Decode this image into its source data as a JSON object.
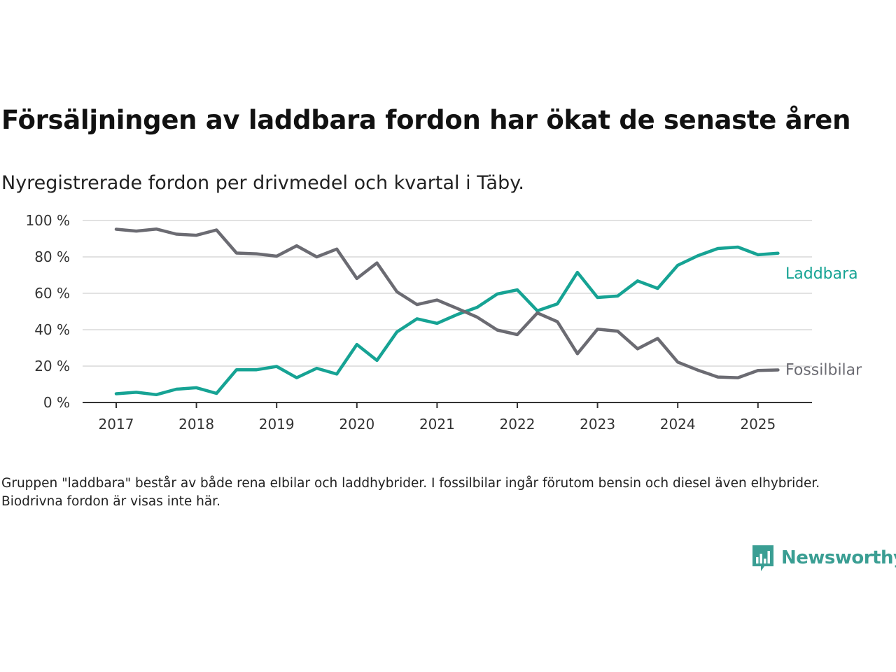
{
  "title": "Försäljningen av laddbara fordon har ökat de senaste åren",
  "subtitle": "Nyregistrerade fordon per drivmedel och kvartal i Täby.",
  "note": "Gruppen \"laddbara\" består av både rena elbilar och laddhybrider. I fossilbilar ingår förutom bensin och diesel även elhybrider. Biodrivna fordon är visas inte här.",
  "logo": {
    "text": "Newsworthy",
    "icon": "newsworthy-bar-chart-icon",
    "color": "#3a9e93"
  },
  "chart_data": {
    "type": "line",
    "x": [
      "2017-Q1",
      "2017-Q2",
      "2017-Q3",
      "2017-Q4",
      "2018-Q1",
      "2018-Q2",
      "2018-Q3",
      "2018-Q4",
      "2019-Q1",
      "2019-Q2",
      "2019-Q3",
      "2019-Q4",
      "2020-Q1",
      "2020-Q2",
      "2020-Q3",
      "2020-Q4",
      "2021-Q1",
      "2021-Q2",
      "2021-Q3",
      "2021-Q4",
      "2022-Q1",
      "2022-Q2",
      "2022-Q3",
      "2022-Q4",
      "2023-Q1",
      "2023-Q2",
      "2023-Q3",
      "2023-Q4",
      "2024-Q1",
      "2024-Q2",
      "2024-Q3",
      "2024-Q4",
      "2025-Q1",
      "2025-Q2"
    ],
    "x_tick_labels": [
      "2017",
      "2018",
      "2019",
      "2020",
      "2021",
      "2022",
      "2023",
      "2024",
      "2025"
    ],
    "y_tick_labels": [
      "0 %",
      "20 %",
      "40 %",
      "60 %",
      "80 %",
      "100 %"
    ],
    "ylim": [
      0,
      100
    ],
    "grid": true,
    "series": [
      {
        "name": "Laddbara",
        "color": "#16a394",
        "values": [
          4.8,
          5.6,
          4.3,
          7.3,
          8.1,
          5.0,
          18.0,
          18.0,
          19.8,
          13.6,
          18.8,
          15.6,
          31.9,
          23.1,
          38.8,
          46.0,
          43.5,
          48.3,
          52.3,
          59.6,
          61.9,
          50.4,
          54.2,
          71.5,
          57.7,
          58.5,
          66.8,
          62.7,
          75.4,
          80.6,
          84.6,
          85.4,
          81.2,
          82.0
        ]
      },
      {
        "name": "Fossilbilar",
        "color": "#6b6b72",
        "values": [
          95.2,
          94.2,
          95.3,
          92.5,
          91.9,
          94.8,
          82.1,
          81.7,
          80.4,
          86.1,
          80.0,
          84.3,
          68.1,
          76.7,
          60.8,
          53.8,
          56.3,
          51.7,
          46.9,
          39.8,
          37.3,
          49.2,
          44.4,
          26.8,
          40.3,
          39.2,
          29.5,
          35.2,
          22.2,
          17.8,
          14.0,
          13.6,
          17.6,
          17.9
        ]
      }
    ]
  }
}
